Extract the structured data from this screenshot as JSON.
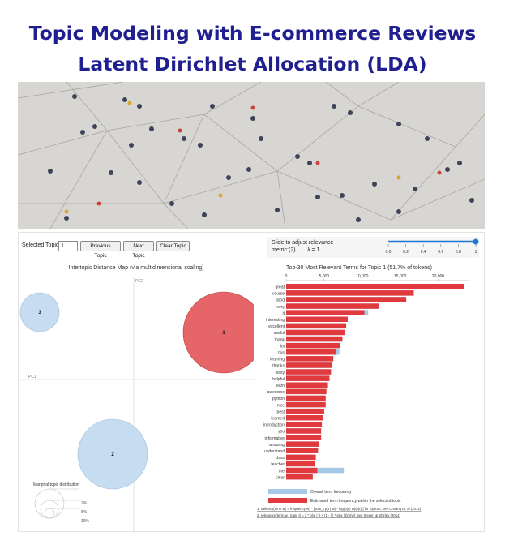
{
  "title": {
    "line1": "Topic Modeling with E-commerce Reviews",
    "line2": "Latent Dirichlet Allocation (LDA)"
  },
  "hero": {
    "icon": "crowd-photo"
  },
  "controls": {
    "selected_topic_label": "Selected Topic:",
    "selected_topic_value": "1",
    "previous_label": "Previous Topic",
    "next_label": "Next Topic",
    "clear_label": "Clear Topic",
    "slider_label_1": "Slide to adjust relevance",
    "slider_label_2": "metric:(2)",
    "lambda_label": "λ = 1",
    "slider_value": 1.0,
    "slider_ticks": [
      "0.0",
      "0.2",
      "0.4",
      "0.6",
      "0.8",
      "1"
    ]
  },
  "intertopic": {
    "title": "Intertopic Distance Map (via multidimensional scaling)",
    "pc1_label": "PC1",
    "pc2_label": "PC2",
    "topics": [
      {
        "label": "1",
        "selected": true
      },
      {
        "label": "2",
        "selected": false
      },
      {
        "label": "3",
        "selected": false
      }
    ],
    "marginal_title": "Marginal topic distribution",
    "marginal_labels": [
      "2%",
      "5%",
      "10%"
    ]
  },
  "chart_data": {
    "type": "bar",
    "title": "Top-30 Most Relevant Terms for Topic 1 (51.7% of tokens)",
    "x_ticks": [
      "0",
      "5,000",
      "10,000",
      "15,000",
      "20,000"
    ],
    "xlim": [
      0,
      24000
    ],
    "categories": [
      "great",
      "course",
      "good",
      "very",
      "it",
      "interesting",
      "excellent",
      "useful",
      "thank",
      "lot",
      "this",
      "learning",
      "thanks",
      "easy",
      "helpful",
      "learn",
      "awesome",
      "python",
      "nice",
      "best",
      "learned",
      "introduction",
      "you",
      "informative",
      "amazing",
      "understand",
      "class",
      "teacher",
      "the",
      "clear"
    ],
    "series": [
      {
        "name": "Overall term frequency",
        "values": [
          23400,
          16800,
          15800,
          12200,
          10800,
          8100,
          7900,
          7700,
          7400,
          7100,
          7000,
          6200,
          6000,
          5900,
          5700,
          5500,
          5300,
          5200,
          5200,
          5000,
          4800,
          4700,
          4600,
          4600,
          4300,
          4200,
          3900,
          3800,
          7600,
          3500
        ]
      },
      {
        "name": "Estimated term frequency within the selected topic",
        "values": [
          23400,
          16800,
          15800,
          12200,
          10300,
          8100,
          7900,
          7700,
          7400,
          7100,
          6500,
          6200,
          6000,
          5900,
          5700,
          5500,
          5300,
          5200,
          5200,
          5000,
          4800,
          4700,
          4600,
          4600,
          4300,
          4200,
          3900,
          3800,
          4100,
          3500
        ]
      }
    ],
    "legend": [
      "Overall term frequency",
      "Estimated term frequency within the selected topic"
    ],
    "colors": {
      "overall": "#a7c9e8",
      "estimated": "#e03a3e"
    },
    "footnote_1": "1. saliency(term w) = frequency(w) * [sum_t p(t | w) * log(p(t | w)/p(t))] for topics t; see Chuang et. al (2012)",
    "footnote_2": "2. relevance(term w | topic t) = λ * p(w | t) + (1 - λ) * p(w | t)/p(w); see Sievert & Shirley (2014)"
  }
}
